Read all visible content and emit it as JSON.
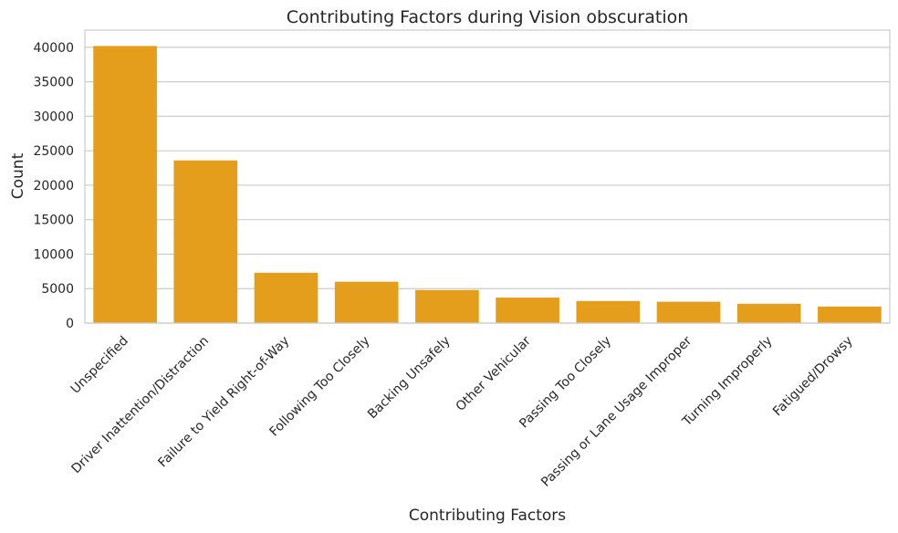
{
  "chart_data": {
    "type": "bar",
    "title": "Contributing Factors during Vision obscuration",
    "xlabel": "Contributing Factors",
    "ylabel": "Count",
    "categories": [
      "Unspecified",
      "Driver Inattention/Distraction",
      "Failure to Yield Right-of-Way",
      "Following Too Closely",
      "Backing Unsafely",
      "Other Vehicular",
      "Passing Too Closely",
      "Passing or Lane Usage Improper",
      "Turning Improperly",
      "Fatigued/Drowsy"
    ],
    "values": [
      40200,
      23600,
      7300,
      6000,
      4800,
      3700,
      3200,
      3100,
      2800,
      2400
    ],
    "ylim": [
      0,
      42500
    ],
    "yticks": [
      0,
      5000,
      10000,
      15000,
      20000,
      25000,
      30000,
      35000,
      40000
    ],
    "grid": true,
    "bar_color": "#e59e1c",
    "legend": "none"
  }
}
